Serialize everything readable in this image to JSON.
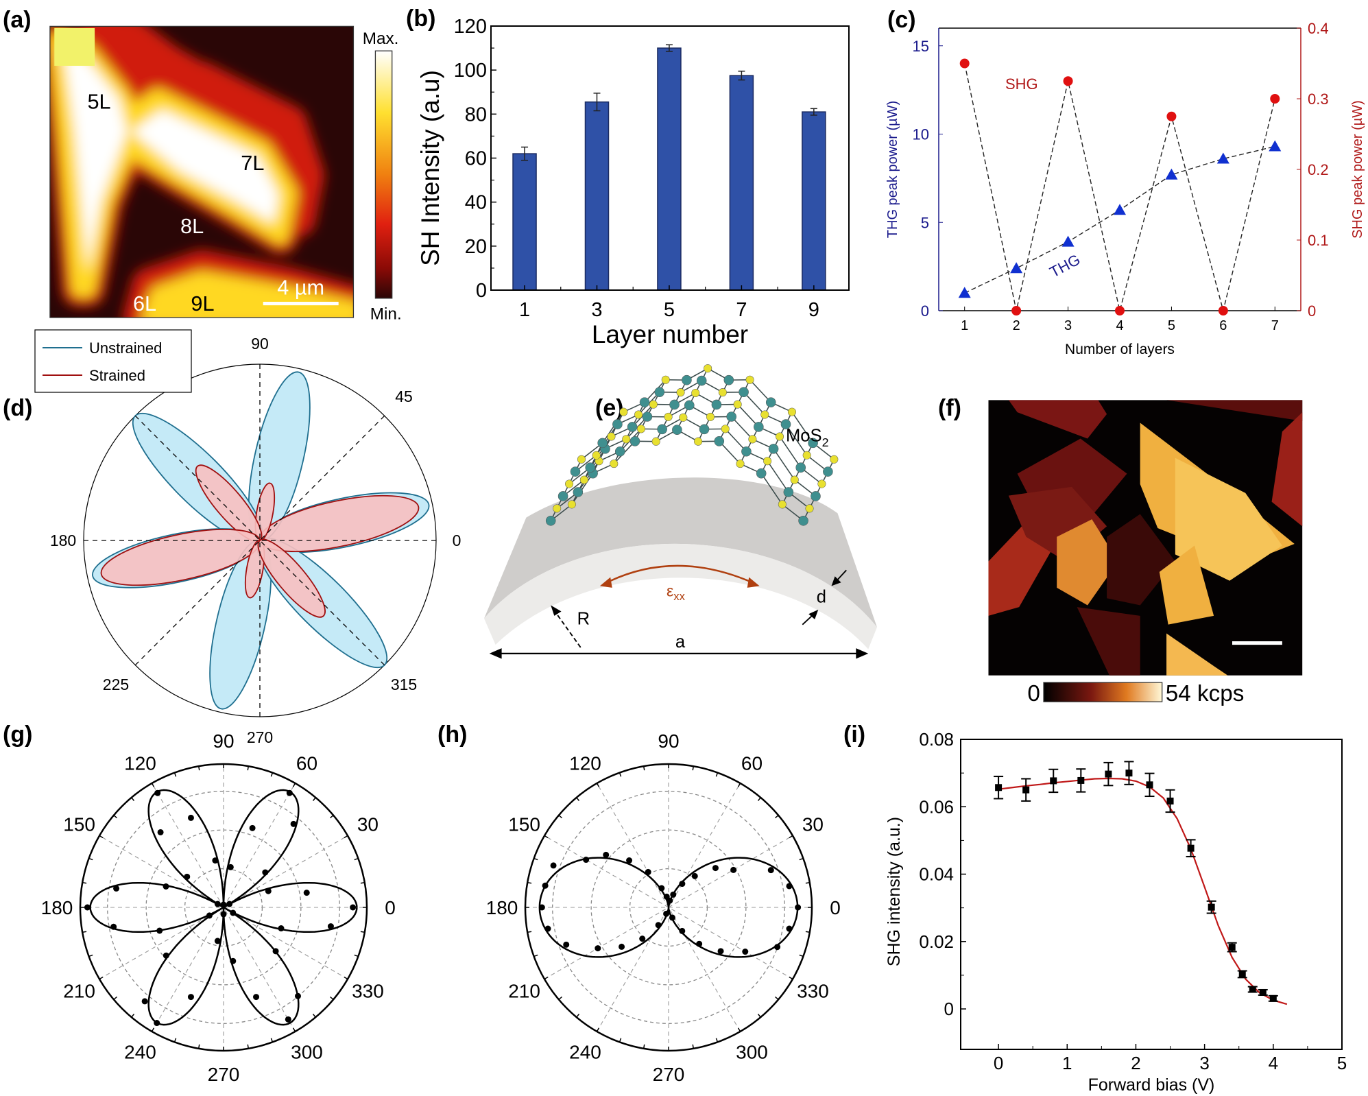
{
  "panels": {
    "a": "(a)",
    "b": "(b)",
    "c": "(c)",
    "d": "(d)",
    "e": "(e)",
    "f": "(f)",
    "g": "(g)",
    "h": "(h)",
    "i": "(i)"
  },
  "panel_a": {
    "region_labels": [
      "5L",
      "7L",
      "8L",
      "6L",
      "9L"
    ],
    "scalebar": "4 µm",
    "colorbar_max": "Max.",
    "colorbar_min": "Min.",
    "colormap": [
      "#2a0606",
      "#8a0a06",
      "#e02010",
      "#f08010",
      "#ffe030",
      "#ffffff"
    ]
  },
  "panel_e": {
    "material": "MoS",
    "material_sub": "2",
    "strain": "ε",
    "strain_sub": "xx",
    "radius": "R",
    "thickness": "d",
    "length": "a",
    "strain_color": "#b04010"
  },
  "panel_f": {
    "colorbar_min": "0",
    "colorbar_max": "54 kcps"
  },
  "chart_data": [
    {
      "type": "bar",
      "x": [
        1,
        3,
        5,
        7,
        9
      ],
      "values": [
        62,
        85.5,
        110,
        97.5,
        81
      ],
      "errors": [
        3,
        4,
        1.5,
        2,
        1.5
      ],
      "xticks": [
        "1",
        "3",
        "5",
        "7",
        "9"
      ],
      "yticks": [
        "0",
        "20",
        "40",
        "60",
        "80",
        "100",
        "120"
      ],
      "xlabel": "Layer number",
      "ylabel": "SH Intensity (a.u)",
      "ylim": [
        0,
        120
      ],
      "xlim": [
        0.07,
        9.97
      ],
      "bar_color": "#2f51a7"
    },
    {
      "type": "line",
      "x": [
        1,
        2,
        3,
        4,
        5,
        6,
        7
      ],
      "xticks": [
        "1",
        "2",
        "3",
        "4",
        "5",
        "6",
        "7"
      ],
      "xlim": [
        0.5,
        7.5
      ],
      "xlabel": "Number of layers",
      "ylabel_left": "THG peak power (µW)",
      "ylabel_right": "SHG peak power (µW)",
      "ylim_left": [
        0,
        16
      ],
      "ylim_right": [
        0,
        0.4
      ],
      "yticks_left": [
        "0",
        "5",
        "10",
        "15"
      ],
      "yticks_right": [
        "0",
        "0.1",
        "0.2",
        "0.3",
        "0.4"
      ],
      "left_color": "#1a1a8c",
      "right_color": "#b01818",
      "series": [
        {
          "name": "THG",
          "axis": "left",
          "marker": "triangle",
          "color": "#1030d0",
          "values": [
            1.0,
            2.4,
            3.9,
            5.7,
            7.7,
            8.6,
            9.3
          ]
        },
        {
          "name": "SHG",
          "axis": "right",
          "marker": "circle",
          "color": "#e01010",
          "values": [
            0.35,
            0,
            0.325,
            0,
            0.275,
            0,
            0.3
          ]
        }
      ]
    },
    {
      "type": "polar",
      "angle_labels": [
        {
          "angle": 90,
          "text": "90"
        },
        {
          "angle": 45,
          "text": "45"
        },
        {
          "angle": 0,
          "text": "0"
        },
        {
          "angle": 180,
          "text": "180"
        },
        {
          "angle": 225,
          "text": "225"
        },
        {
          "angle": 315,
          "text": "315"
        },
        {
          "angle": 270,
          "text": "270"
        }
      ],
      "legend": "top-left",
      "series": [
        {
          "name": "Unstrained",
          "color": "#1f6f8f",
          "fill": "#bfe8f6",
          "lobes": [
            {
              "angle": 12,
              "r": 0.98
            },
            {
              "angle": 77,
              "r": 0.98
            },
            {
              "angle": 135,
              "r": 1.0
            },
            {
              "angle": 192,
              "r": 0.97
            },
            {
              "angle": 257,
              "r": 0.98
            },
            {
              "angle": 315,
              "r": 1.0
            }
          ]
        },
        {
          "name": "Strained",
          "color": "#a01010",
          "fill": "#f7c0c0",
          "lobes": [
            {
              "angle": 12,
              "r": 0.92
            },
            {
              "angle": 80,
              "r": 0.33
            },
            {
              "angle": 130,
              "r": 0.55
            },
            {
              "angle": 192,
              "r": 0.92
            },
            {
              "angle": 260,
              "r": 0.33
            },
            {
              "angle": 310,
              "r": 0.56
            }
          ]
        }
      ]
    },
    {
      "type": "polar",
      "angle_labels": [
        "0",
        "30",
        "60",
        "90",
        "120",
        "150",
        "180",
        "210",
        "240",
        "270",
        "300",
        "330"
      ],
      "points": [
        [
          0,
          0.95
        ],
        [
          10,
          0.62
        ],
        [
          20,
          0.35
        ],
        [
          30,
          0.05
        ],
        [
          40,
          0.4
        ],
        [
          50,
          0.8
        ],
        [
          60,
          0.97
        ],
        [
          70,
          0.62
        ],
        [
          80,
          0.3
        ],
        [
          90,
          0.02
        ],
        [
          100,
          0.35
        ],
        [
          110,
          0.7
        ],
        [
          120,
          0.97
        ],
        [
          130,
          0.72
        ],
        [
          140,
          0.35
        ],
        [
          150,
          0.05
        ],
        [
          160,
          0.45
        ],
        [
          170,
          0.8
        ],
        [
          180,
          1.0
        ],
        [
          190,
          0.82
        ],
        [
          200,
          0.5
        ],
        [
          210,
          0.12
        ],
        [
          220,
          0.55
        ],
        [
          230,
          0.9
        ],
        [
          240,
          0.98
        ],
        [
          250,
          0.7
        ],
        [
          260,
          0.25
        ],
        [
          270,
          0.05
        ],
        [
          280,
          0.4
        ],
        [
          290,
          0.7
        ],
        [
          300,
          0.95
        ],
        [
          310,
          0.85
        ],
        [
          320,
          0.5
        ],
        [
          330,
          0.08
        ],
        [
          340,
          0.45
        ],
        [
          350,
          0.8
        ]
      ],
      "fit": "six-fold",
      "rlim": [
        0,
        1
      ]
    },
    {
      "type": "polar",
      "angle_labels": [
        "0",
        "30",
        "60",
        "90",
        "120",
        "150",
        "180",
        "210",
        "240",
        "270",
        "300",
        "330"
      ],
      "points": [
        [
          0,
          0.95
        ],
        [
          10,
          0.9
        ],
        [
          20,
          0.8
        ],
        [
          30,
          0.55
        ],
        [
          40,
          0.45
        ],
        [
          50,
          0.3
        ],
        [
          60,
          0.2
        ],
        [
          70,
          0.1
        ],
        [
          80,
          0.05
        ],
        [
          100,
          0.08
        ],
        [
          110,
          0.15
        ],
        [
          120,
          0.3
        ],
        [
          130,
          0.45
        ],
        [
          140,
          0.6
        ],
        [
          150,
          0.7
        ],
        [
          160,
          0.9
        ],
        [
          170,
          0.92
        ],
        [
          180,
          0.93
        ],
        [
          190,
          0.9
        ],
        [
          200,
          0.8
        ],
        [
          210,
          0.6
        ],
        [
          220,
          0.45
        ],
        [
          230,
          0.3
        ],
        [
          240,
          0.15
        ],
        [
          250,
          0.05
        ],
        [
          290,
          0.08
        ],
        [
          300,
          0.2
        ],
        [
          310,
          0.35
        ],
        [
          320,
          0.5
        ],
        [
          330,
          0.65
        ],
        [
          340,
          0.85
        ],
        [
          350,
          0.9
        ]
      ],
      "fit": "two-fold",
      "rlim": [
        0,
        1
      ]
    },
    {
      "type": "scatter",
      "x": [
        0,
        0.4,
        0.8,
        1.2,
        1.6,
        1.9,
        2.2,
        2.5,
        2.8,
        3.1,
        3.4,
        3.55,
        3.7,
        3.85,
        4.0
      ],
      "y": [
        0.0657,
        0.065,
        0.0677,
        0.0678,
        0.0697,
        0.07,
        0.0665,
        0.0617,
        0.0477,
        0.0302,
        0.0183,
        0.0103,
        0.0058,
        0.0049,
        0.0031
      ],
      "errors": [
        0.0033,
        0.0033,
        0.0034,
        0.0034,
        0.0034,
        0.0034,
        0.0034,
        0.0033,
        0.0025,
        0.0018,
        0.0013,
        0.001,
        0.0008,
        0.0008,
        0.0008
      ],
      "fit": {
        "x": [
          0,
          0.2,
          0.4,
          0.6,
          0.8,
          1.0,
          1.2,
          1.4,
          1.6,
          1.8,
          2.0,
          2.2,
          2.4,
          2.6,
          2.8,
          3.0,
          3.2,
          3.4,
          3.6,
          3.8,
          4.0,
          4.2
        ],
        "y": [
          0.0652,
          0.0657,
          0.0662,
          0.0666,
          0.0671,
          0.0675,
          0.0679,
          0.0683,
          0.0684,
          0.0683,
          0.0676,
          0.0659,
          0.0626,
          0.0565,
          0.0475,
          0.0362,
          0.0247,
          0.0153,
          0.0088,
          0.0048,
          0.0026,
          0.0014
        ],
        "color": "#c01818"
      },
      "xticks": [
        "0",
        "1",
        "2",
        "3",
        "4",
        "5"
      ],
      "yticks": [
        "0",
        "0.02",
        "0.04",
        "0.06",
        "0.08"
      ],
      "xlabel": "Forward bias (V)",
      "ylabel": "SHG intensity (a.u.)",
      "xlim": [
        -0.55,
        5
      ],
      "ylim": [
        -0.012,
        0.08
      ]
    }
  ]
}
